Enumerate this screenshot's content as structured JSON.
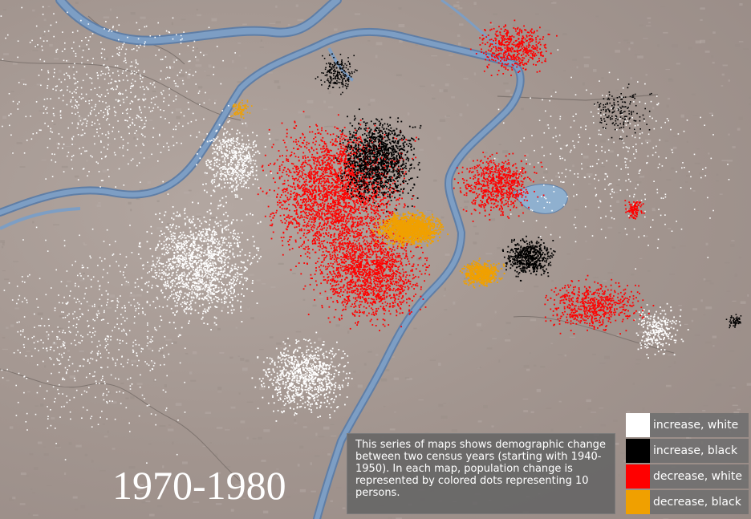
{
  "map": {
    "period_label": "1970-1980",
    "description": "This series of maps shows demographic change between two census years (starting with 1940-1950). In each map, population change is represented by colored dots representing 10 persons.",
    "colors": {
      "river": "#7d9ec4",
      "river_edge": "#5f7ea6",
      "terrain": "#a89c96",
      "increase_white": "#ffffff",
      "increase_black": "#000000",
      "decrease_white": "#ff0000",
      "decrease_black": "#f0a000"
    }
  },
  "legend": {
    "items": [
      {
        "label": "increase, white",
        "color": "#ffffff"
      },
      {
        "label": "increase, black",
        "color": "#000000"
      },
      {
        "label": "decrease, white",
        "color": "#ff0000"
      },
      {
        "label": "decrease, black",
        "color": "#f0a000"
      }
    ]
  }
}
